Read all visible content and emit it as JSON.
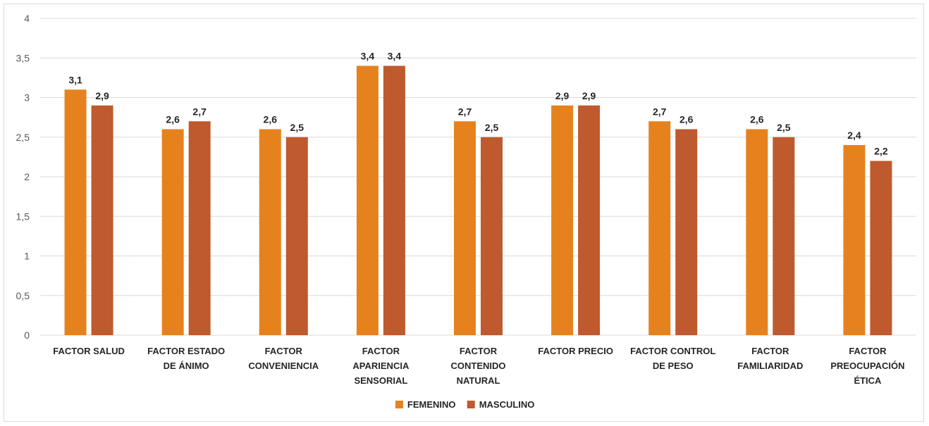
{
  "chart_data": {
    "type": "bar",
    "categories": [
      "FACTOR SALUD",
      "FACTOR ESTADO DE ÁNIMO",
      "FACTOR CONVENIENCIA",
      "FACTOR APARIENCIA SENSORIAL",
      "FACTOR CONTENIDO NATURAL",
      "FACTOR PRECIO",
      "FACTOR CONTROL DE PESO",
      "FACTOR FAMILIARIDAD",
      "FACTOR PREOCUPACIÓN ÉTICA"
    ],
    "category_lines": [
      [
        "FACTOR SALUD"
      ],
      [
        "FACTOR ESTADO",
        "DE ÁNIMO"
      ],
      [
        "FACTOR",
        "CONVENIENCIA"
      ],
      [
        "FACTOR",
        "APARIENCIA",
        "SENSORIAL"
      ],
      [
        "FACTOR",
        "CONTENIDO",
        "NATURAL"
      ],
      [
        "FACTOR PRECIO"
      ],
      [
        "FACTOR CONTROL",
        "DE PESO"
      ],
      [
        "FACTOR",
        "FAMILIARIDAD"
      ],
      [
        "FACTOR",
        "PREOCUPACIÓN",
        "ÉTICA"
      ]
    ],
    "series": [
      {
        "name": "FEMENINO",
        "color": "#E6821E",
        "values": [
          3.1,
          2.6,
          2.6,
          3.4,
          2.7,
          2.9,
          2.7,
          2.6,
          2.4
        ],
        "labels": [
          "3,1",
          "2,6",
          "2,6",
          "3,4",
          "2,7",
          "2,9",
          "2,7",
          "2,6",
          "2,4"
        ]
      },
      {
        "name": "MASCULINO",
        "color": "#BE5A2D",
        "values": [
          2.9,
          2.7,
          2.5,
          3.4,
          2.5,
          2.9,
          2.6,
          2.5,
          2.2
        ],
        "labels": [
          "2,9",
          "2,7",
          "2,5",
          "3,4",
          "2,5",
          "2,9",
          "2,6",
          "2,5",
          "2,2"
        ]
      }
    ],
    "ylim": [
      0,
      4
    ],
    "yticks": [
      0,
      0.5,
      1,
      1.5,
      2,
      2.5,
      3,
      3.5,
      4
    ],
    "ytick_labels": [
      "0",
      "0,5",
      "1",
      "1,5",
      "2",
      "2,5",
      "3",
      "3,5",
      "4"
    ],
    "grid": true,
    "legend_position": "bottom-center",
    "gridline_color": "#d9d9d9"
  }
}
